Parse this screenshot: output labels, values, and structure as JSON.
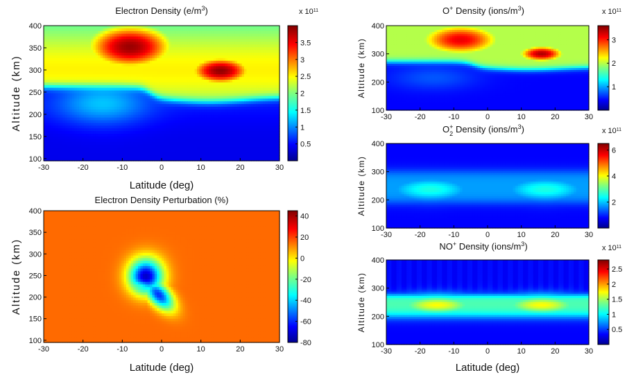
{
  "chart_data": [
    {
      "id": "electron",
      "type": "heatmap",
      "title": "Electron Density (e/m",
      "title_sup": "3",
      "title_tail": ")",
      "xlabel": "Latitude (deg)",
      "ylabel": "Altitude (km)",
      "xlim": [
        -30,
        30
      ],
      "ylim": [
        95,
        400
      ],
      "xticks": [
        "-30",
        "-20",
        "-10",
        "0",
        "10",
        "20",
        "30"
      ],
      "yticks": [
        "100",
        "150",
        "200",
        "250",
        "300",
        "350",
        "400"
      ],
      "colorbar": {
        "range": [
          0,
          4.0
        ],
        "ticks": [
          "0.5",
          "1",
          "1.5",
          "2",
          "2.5",
          "3",
          "3.5"
        ],
        "multiplier_prefix": "x 10",
        "multiplier_exp": "11"
      },
      "description_values": {
        "peak_altitude_south_km": 350,
        "peak_altitude_north_km": 295,
        "peak_value": 3.8,
        "low_altitude_blob": {
          "lat": -16,
          "alt": 220,
          "value": 1.0
        }
      }
    },
    {
      "id": "perturbation",
      "type": "heatmap",
      "title": "Electron Density Perturbation (%)",
      "xlabel": "Latitude (deg)",
      "ylabel": "Altitude (km)",
      "xlim": [
        -30,
        30
      ],
      "ylim": [
        95,
        400
      ],
      "xticks": [
        "-30",
        "-20",
        "-10",
        "0",
        "10",
        "20",
        "30"
      ],
      "yticks": [
        "100",
        "150",
        "200",
        "250",
        "300",
        "350",
        "400"
      ],
      "colorbar": {
        "range": [
          -80,
          45
        ],
        "ticks": [
          "40",
          "20",
          "0",
          "-20",
          "-40",
          "-60",
          "-80"
        ]
      },
      "description_values": {
        "background_value": 8,
        "depletion_center": {
          "lat": -4,
          "alt": 245,
          "value": -75
        }
      }
    },
    {
      "id": "oplus",
      "type": "heatmap",
      "title": "O",
      "title_sup": "+",
      "title_tail": " Density (ions/m",
      "title_sup2": "3",
      "title_tail2": ")",
      "ylabel": "Altitude (km)",
      "xlim": [
        -30,
        30
      ],
      "ylim": [
        100,
        400
      ],
      "xticks": [
        "-30",
        "-20",
        "-10",
        "0",
        "10",
        "20",
        "30"
      ],
      "yticks": [
        "100",
        "200",
        "300",
        "400"
      ],
      "colorbar": {
        "range": [
          0,
          3.6
        ],
        "ticks": [
          "3",
          "2",
          "1"
        ],
        "multiplier_prefix": "x 10",
        "multiplier_exp": "11"
      }
    },
    {
      "id": "o2plus",
      "type": "heatmap",
      "title": "O",
      "title_sub": "2",
      "title_sup": "+",
      "title_tail": " Density (ions/m",
      "title_sup2": "3",
      "title_tail2": ")",
      "ylabel": "Altitude (km)",
      "xlim": [
        -30,
        30
      ],
      "ylim": [
        100,
        400
      ],
      "xticks": [
        "-30",
        "-20",
        "-10",
        "0",
        "10",
        "20",
        "30"
      ],
      "yticks": [
        "100",
        "200",
        "300",
        "400"
      ],
      "colorbar": {
        "range": [
          0,
          6.5
        ],
        "ticks": [
          "6",
          "4",
          "2"
        ],
        "multiplier_prefix": "x 10",
        "multiplier_exp": "11"
      }
    },
    {
      "id": "noplus",
      "type": "heatmap",
      "title": "NO",
      "title_sup": "+",
      "title_tail": " Density (ions/m",
      "title_sup2": "3",
      "title_tail2": ")",
      "xlabel": "Latitude (deg)",
      "ylabel": "Altitude (km)",
      "xlim": [
        -30,
        30
      ],
      "ylim": [
        100,
        400
      ],
      "xticks": [
        "-30",
        "-20",
        "-10",
        "0",
        "10",
        "20",
        "30"
      ],
      "yticks": [
        "100",
        "200",
        "300",
        "400"
      ],
      "colorbar": {
        "range": [
          0,
          2.8
        ],
        "ticks": [
          "2.5",
          "2",
          "1.5",
          "1",
          "0.5"
        ],
        "multiplier_prefix": "x 10",
        "multiplier_exp": "11"
      }
    }
  ]
}
